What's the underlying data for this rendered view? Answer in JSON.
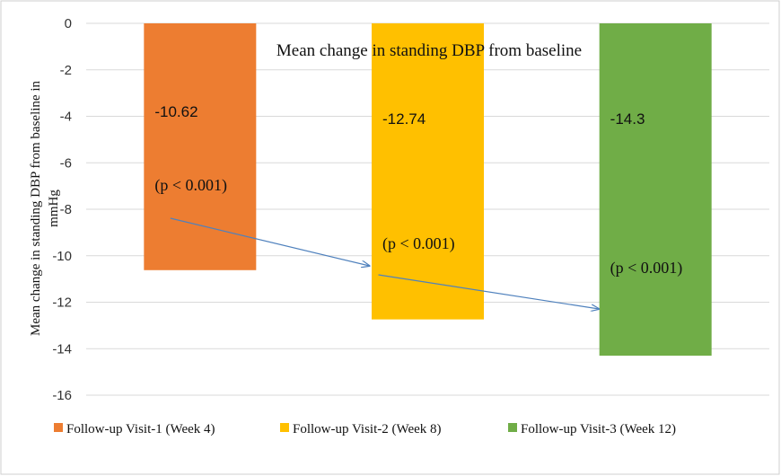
{
  "chart_data": {
    "type": "bar",
    "title": "Mean change in standing DBP from baseline",
    "ylabel_line1": "Mean change in standing DBP from baseline in",
    "ylabel_line2": "mmHg",
    "xlabel": "",
    "ylim": [
      -16,
      0
    ],
    "ytick_step": 2,
    "yticks": [
      "0",
      "-2",
      "-4",
      "-6",
      "-8",
      "-10",
      "-12",
      "-14",
      "-16"
    ],
    "grid": true,
    "legend_position": "bottom",
    "series": [
      {
        "name": "Follow-up Visit-1 (Week 4)",
        "value": -10.62,
        "value_label": "-10.62",
        "p_label": "(p < 0.001)",
        "color": "#ED7D31"
      },
      {
        "name": "Follow-up Visit-2 (Week 8)",
        "value": -12.74,
        "value_label": "-12.74",
        "p_label": "(p < 0.001)",
        "color": "#FFC000"
      },
      {
        "name": "Follow-up Visit-3 (Week 12)",
        "value": -14.3,
        "value_label": "-14.3",
        "p_label": "(p < 0.001)",
        "color": "#70AD47"
      }
    ],
    "arrow_color": "#4F81BD"
  }
}
